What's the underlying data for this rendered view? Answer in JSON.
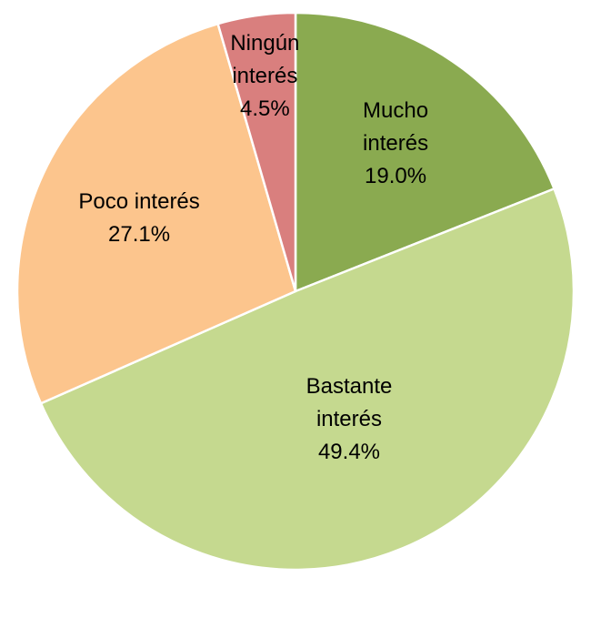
{
  "chart_data": {
    "type": "pie",
    "categories": [
      "Mucho interés",
      "Bastante interés",
      "Poco interés",
      "Ningún interés"
    ],
    "values": [
      19.0,
      49.4,
      27.1,
      4.5
    ],
    "value_labels": [
      "19.0%",
      "49.4%",
      "27.1%",
      "4.5%"
    ],
    "colors": [
      "#8aaa50",
      "#c5d98f",
      "#fcc58d",
      "#d97f7e"
    ]
  }
}
